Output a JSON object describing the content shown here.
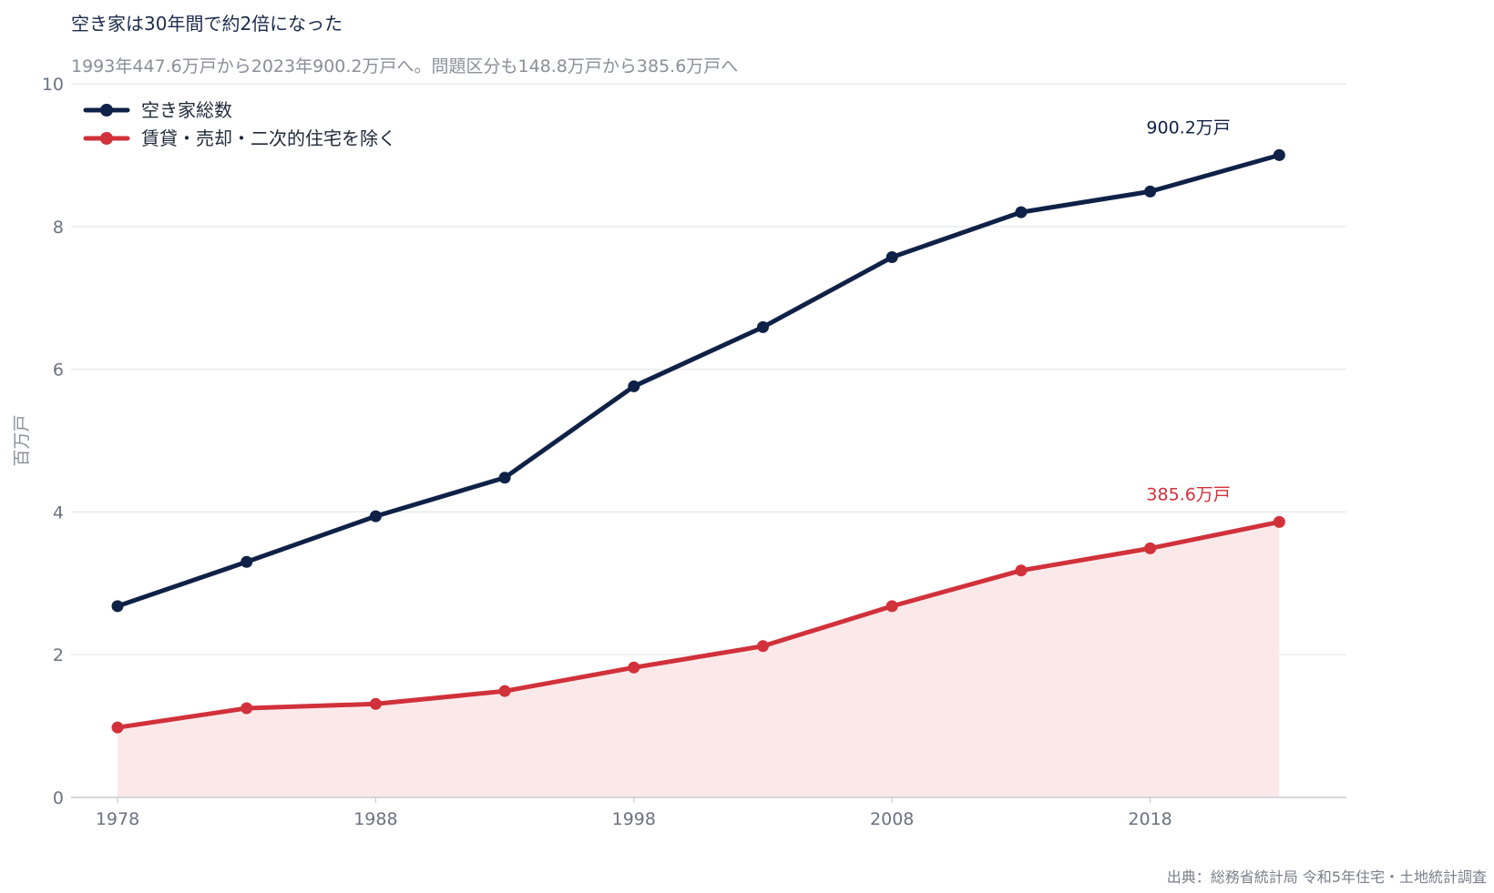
{
  "header": {
    "title": "空き家は30年間で約2倍になった",
    "subtitle": "1993年447.6万戸から2023年900.2万戸へ。問題区分も148.8万戸から385.6万戸へ"
  },
  "footer": {
    "source": "出典：総務省統計局 令和5年住宅・土地統計調査"
  },
  "chart_data": {
    "type": "line",
    "ylabel": "百万戸",
    "ylim": [
      0,
      10
    ],
    "yticks": [
      "0",
      "2",
      "4",
      "6",
      "8",
      "10"
    ],
    "xlim": [
      1976.2,
      2025.6
    ],
    "xticks": [
      "1978",
      "1988",
      "1998",
      "2008",
      "2018"
    ],
    "x": [
      1978,
      1983,
      1988,
      1993,
      1998,
      2003,
      2008,
      2013,
      2018,
      2023
    ],
    "grid": true,
    "legend_position": "top-left",
    "series": [
      {
        "name": "空き家総数",
        "color": "#0f2147",
        "values": [
          2.68,
          3.3,
          3.94,
          4.48,
          5.76,
          6.59,
          7.57,
          8.2,
          8.49,
          9.0
        ],
        "end_label": "900.2万戸",
        "fill": false
      },
      {
        "name": "賃貸・売却・二次的住宅を除く",
        "color": "#d1313a",
        "values": [
          0.98,
          1.25,
          1.31,
          1.49,
          1.82,
          2.12,
          2.68,
          3.18,
          3.49,
          3.86
        ],
        "end_label": "385.6万戸",
        "fill": true,
        "fill_color": "#fbe9ea"
      }
    ]
  }
}
